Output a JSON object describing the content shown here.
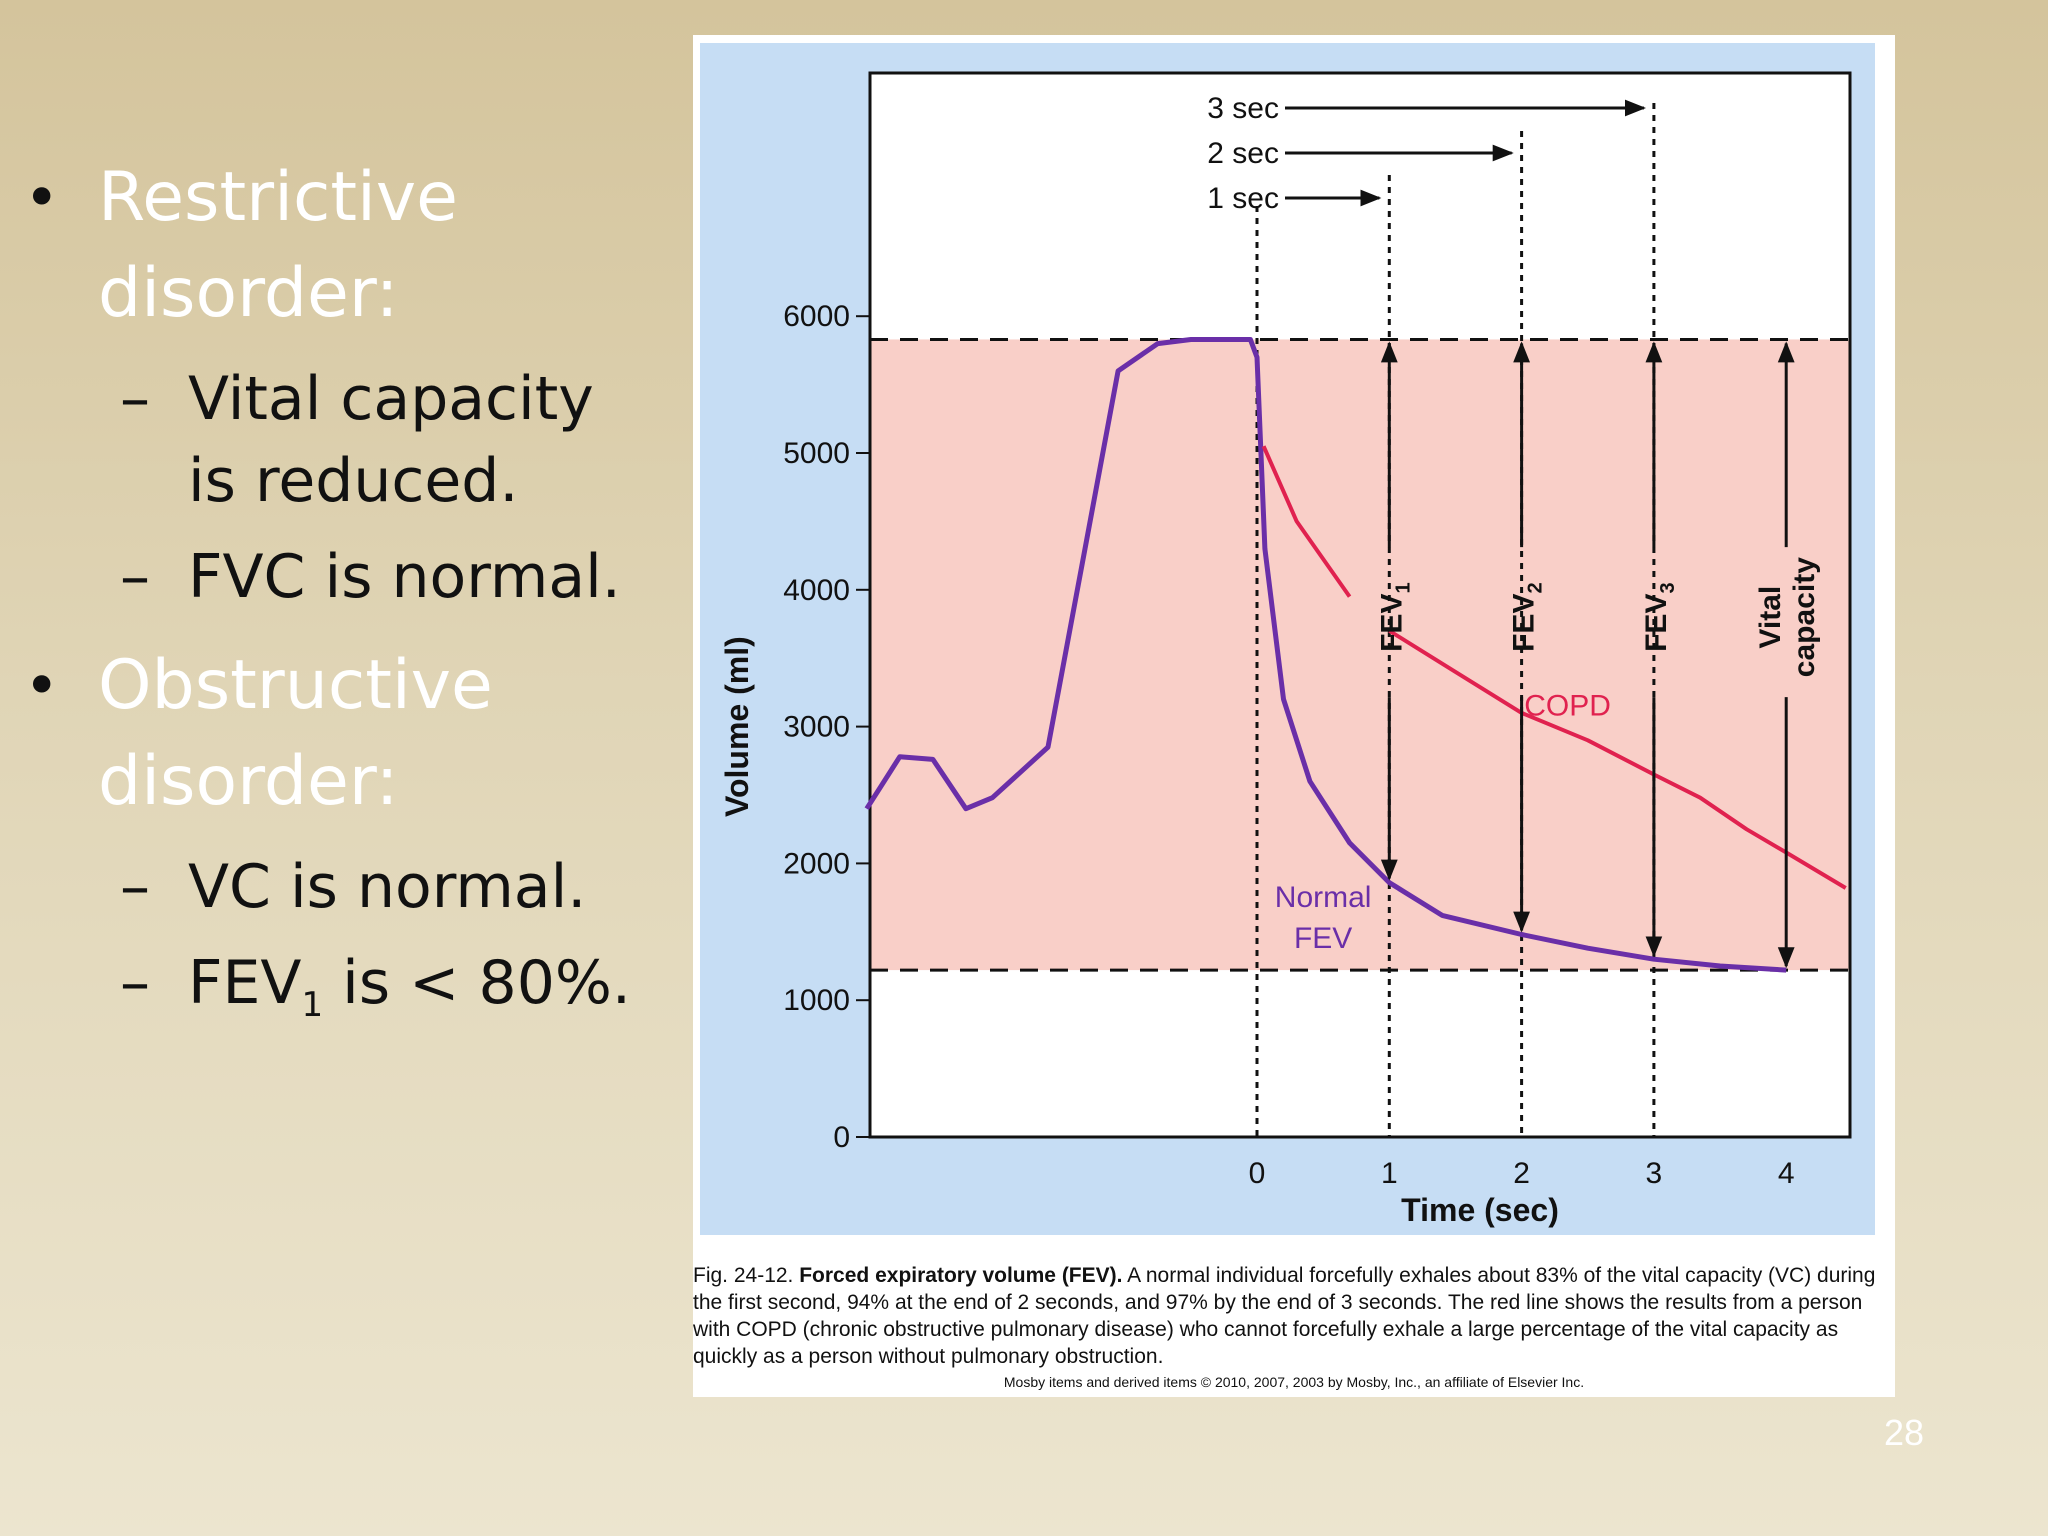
{
  "slide": {
    "page_number": "28",
    "bullets": [
      {
        "title": "Restrictive disorder:",
        "subs": [
          "Vital capacity is reduced.",
          "FVC is normal."
        ]
      },
      {
        "title": "Obstructive disorder:",
        "subs": [
          "VC is normal.",
          {
            "pre": "FEV",
            "sub": "1",
            "post": " is < 80%."
          }
        ]
      }
    ]
  },
  "figure": {
    "caption_prefix": "Fig. 24-12.",
    "caption_bold": "Forced expiratory volume (FEV).",
    "caption_text": "A normal individual forcefully exhales about 83% of the vital capacity (VC) during the first second, 94% at the end of 2 seconds, and 97% by the end of 3 seconds. The red line shows the results from a person with COPD (chronic obstructive pulmonary disease) who cannot forcefully exhale a large percentage of the vital capacity as quickly as a person without pulmonary obstruction.",
    "copyright": "Mosby items and derived items © 2010, 2007, 2003 by Mosby, Inc., an affiliate of Elsevier Inc."
  },
  "chart_data": {
    "type": "line",
    "xlabel": "Time (sec)",
    "ylabel": "Volume (ml)",
    "xlim": [
      -2.95,
      4.5
    ],
    "ylim": [
      0,
      7800
    ],
    "x_ticks": [
      0,
      1,
      2,
      3,
      4
    ],
    "y_ticks": [
      0,
      1000,
      2000,
      3000,
      4000,
      5000,
      6000
    ],
    "dashed_levels": [
      5830,
      1220
    ],
    "shaded_band": [
      1220,
      5830
    ],
    "colors": {
      "normal": "#6a2fa8",
      "copd": "#e0224f",
      "band": "#f9cfc8",
      "panel": "#c6ddf4"
    },
    "series": [
      {
        "name": "Normal FEV",
        "label_lines": [
          "Normal",
          "FEV"
        ],
        "color": "#6a2fa8",
        "points": [
          [
            -2.95,
            2400
          ],
          [
            -2.7,
            2780
          ],
          [
            -2.45,
            2760
          ],
          [
            -2.2,
            2400
          ],
          [
            -2.0,
            2480
          ],
          [
            -1.58,
            2850
          ],
          [
            -1.3,
            4300
          ],
          [
            -1.05,
            5600
          ],
          [
            -0.75,
            5800
          ],
          [
            -0.5,
            5830
          ],
          [
            -0.05,
            5830
          ],
          [
            0.0,
            5700
          ],
          [
            0.06,
            4300
          ],
          [
            0.2,
            3200
          ],
          [
            0.4,
            2600
          ],
          [
            0.7,
            2150
          ],
          [
            1.0,
            1860
          ],
          [
            1.4,
            1620
          ],
          [
            2.0,
            1480
          ],
          [
            2.5,
            1380
          ],
          [
            3.0,
            1300
          ],
          [
            3.5,
            1250
          ],
          [
            4.0,
            1220
          ]
        ]
      },
      {
        "name": "COPD",
        "label_lines": [
          "COPD"
        ],
        "color": "#e0224f",
        "points": [
          [
            0.05,
            5050
          ],
          [
            0.3,
            4500
          ],
          [
            0.7,
            3950
          ]
        ],
        "segments": [
          [
            [
              0.05,
              5050
            ],
            [
              0.3,
              4500
            ],
            [
              0.7,
              3950
            ]
          ],
          [
            [
              1.0,
              3700
            ],
            [
              1.5,
              3400
            ],
            [
              2.0,
              3100
            ],
            [
              2.5,
              2900
            ],
            [
              3.0,
              2650
            ],
            [
              3.35,
              2480
            ],
            [
              3.7,
              2250
            ],
            [
              4.0,
              2080
            ],
            [
              4.45,
              1820
            ]
          ]
        ]
      }
    ],
    "fev_markers": [
      {
        "x": 1,
        "top": 5830,
        "bottom": 1860,
        "label": "FEV",
        "sub": "1"
      },
      {
        "x": 2,
        "top": 5830,
        "bottom": 1480,
        "label": "FEV",
        "sub": "2"
      },
      {
        "x": 3,
        "top": 5830,
        "bottom": 1300,
        "label": "FEV",
        "sub": "3"
      },
      {
        "x": 4,
        "top": 5830,
        "bottom": 1220,
        "label_lines": [
          "Vital",
          "capacity"
        ]
      }
    ],
    "time_arrows": [
      {
        "label": "3 sec",
        "end": 3
      },
      {
        "label": "2 sec",
        "end": 2
      },
      {
        "label": "1 sec",
        "end": 1
      }
    ]
  }
}
